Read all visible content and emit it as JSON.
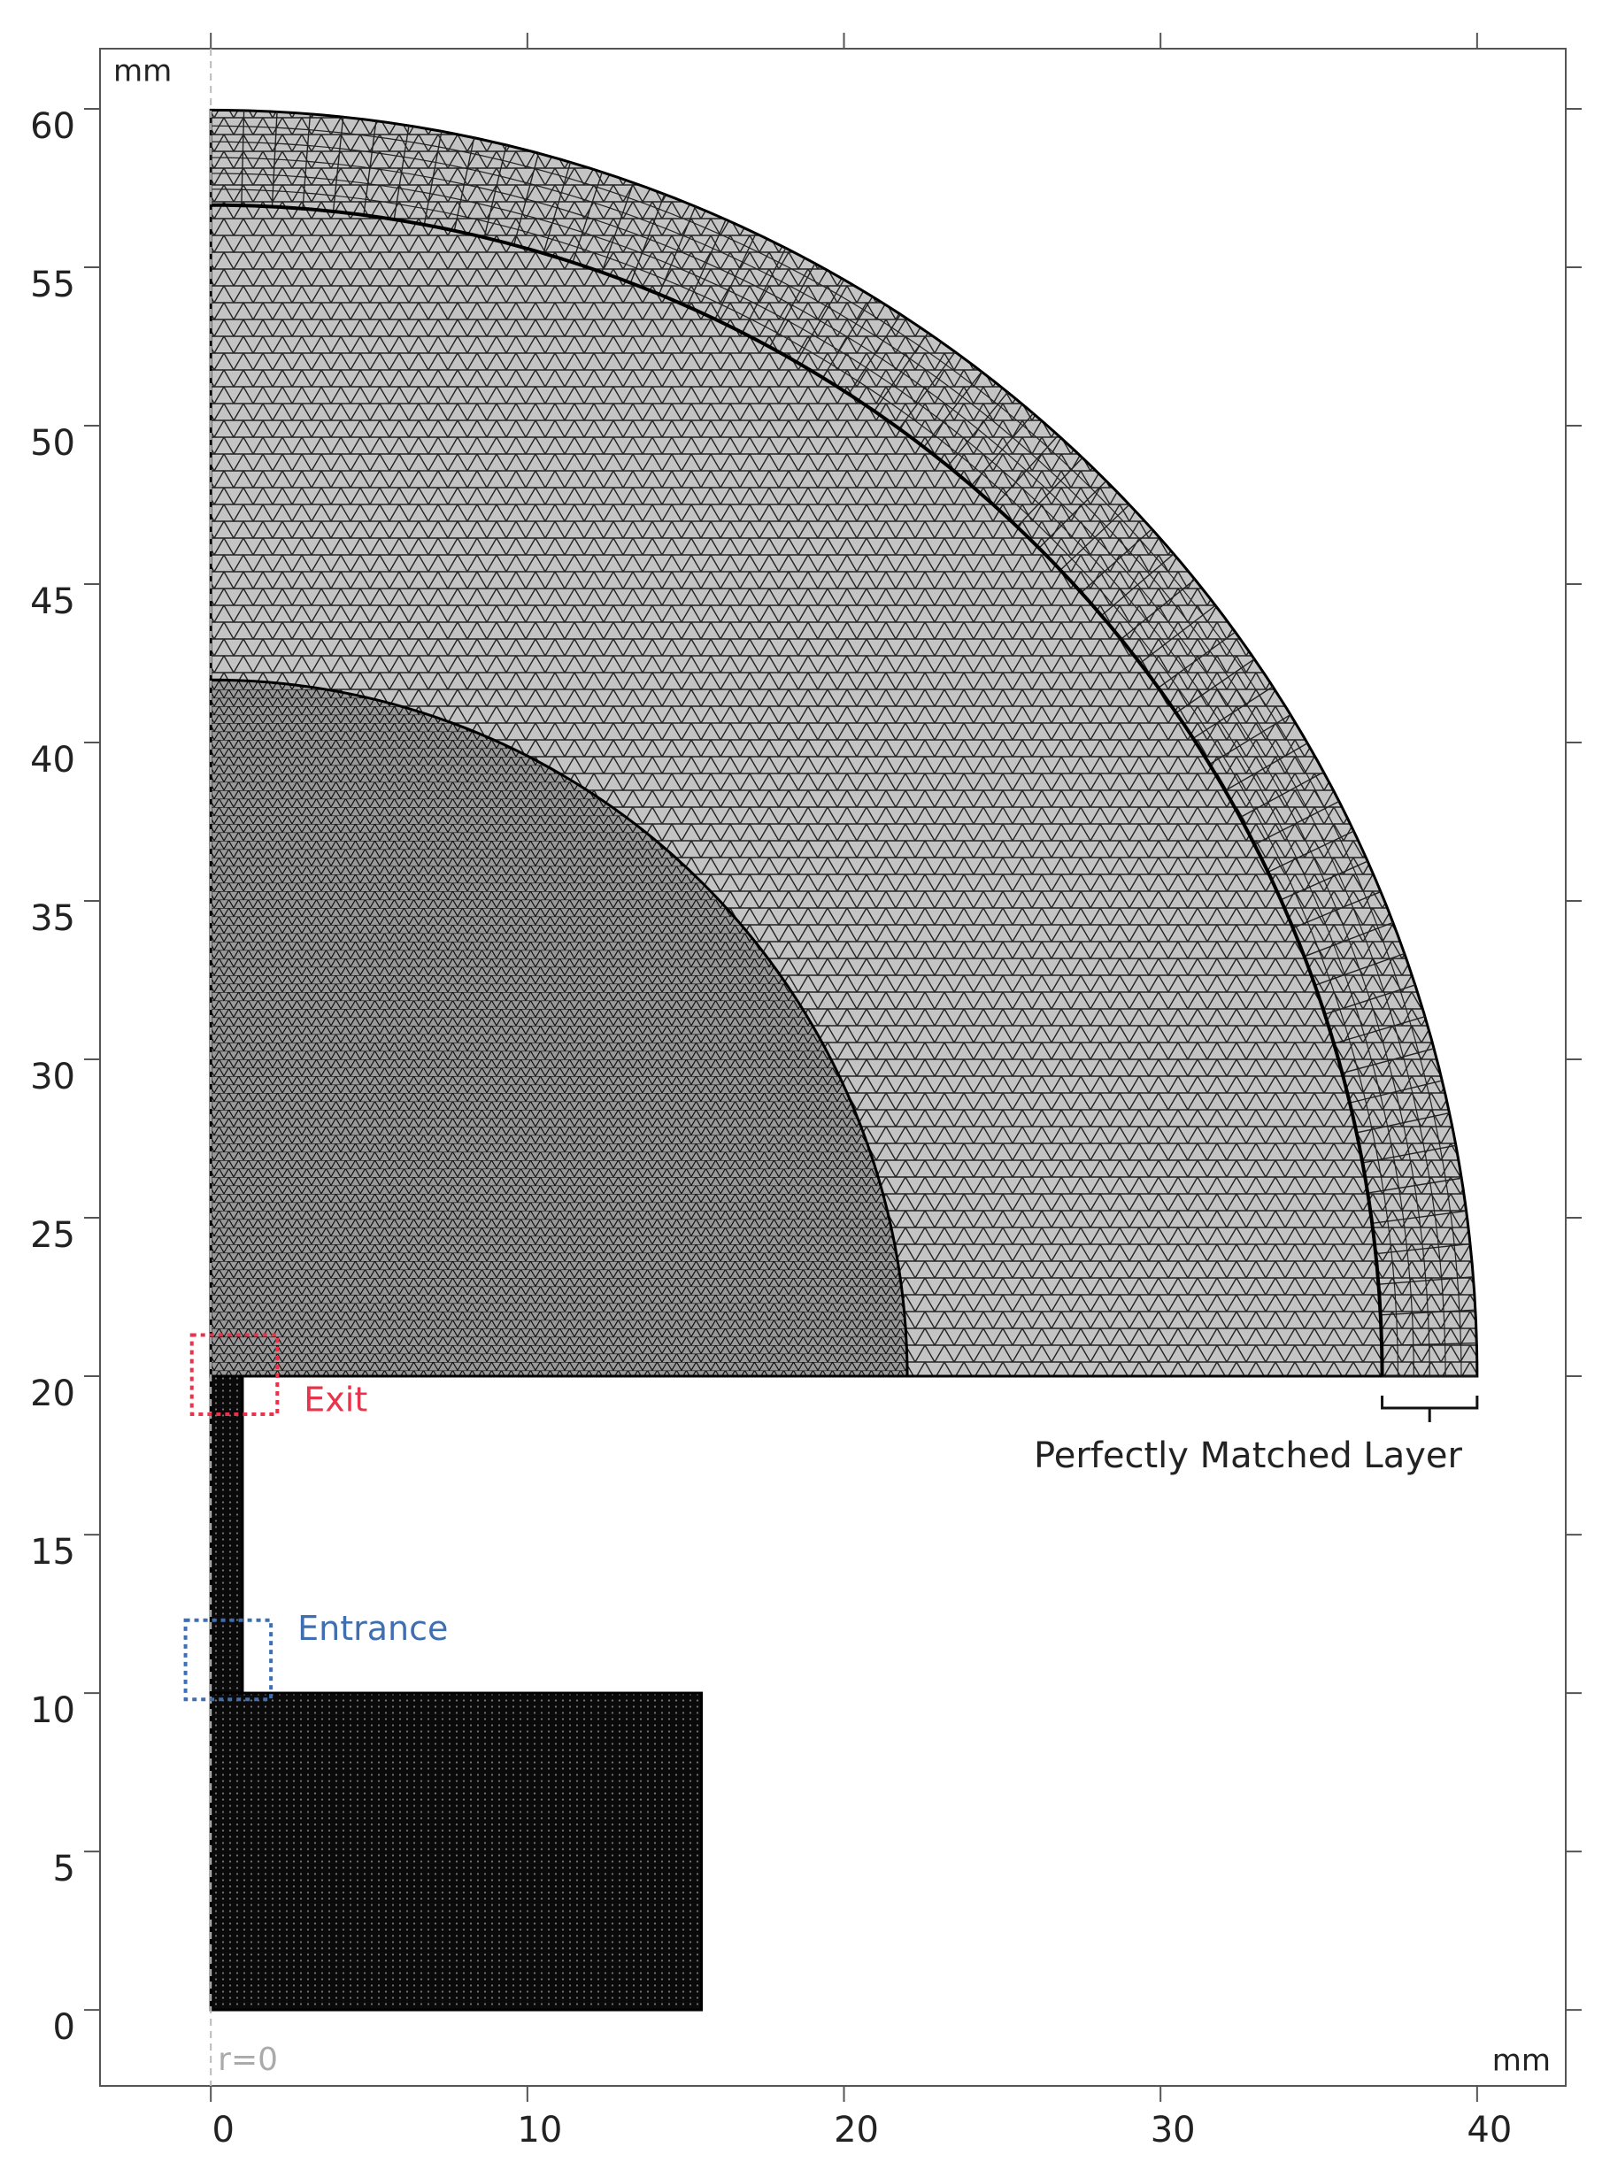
{
  "chart_data": {
    "type": "mesh",
    "x_unit": "mm",
    "y_unit": "mm",
    "axis_note": "r=0",
    "xlim": [
      -3.5,
      42.8
    ],
    "ylim": [
      -2.4,
      61.9
    ],
    "xticks": [
      0,
      10,
      20,
      30,
      40
    ],
    "yticks": [
      0,
      5,
      10,
      15,
      20,
      25,
      30,
      35,
      40,
      45,
      50,
      55,
      60
    ],
    "geometry": {
      "center_y": 20,
      "outer_radius": 40,
      "pml_radius": 37,
      "inner_radius": 22,
      "tube": {
        "x": [
          0,
          1
        ],
        "y": [
          10,
          20
        ]
      },
      "chamber": {
        "x": [
          0,
          15.5
        ],
        "y": [
          0,
          10
        ]
      }
    },
    "annotations": [
      {
        "text": "Exit",
        "color": "#e8334a",
        "x": [
          -0.6,
          2.1
        ],
        "y": [
          18.8,
          21.3
        ]
      },
      {
        "text": "Entrance",
        "color": "#3f6fb0",
        "x": [
          -0.8,
          1.9
        ],
        "y": [
          9.8,
          12.3
        ]
      }
    ],
    "pml_label": "Perfectly Matched Layer"
  }
}
